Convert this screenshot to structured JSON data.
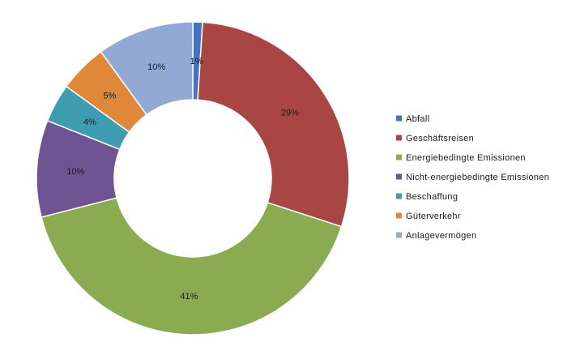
{
  "chart_data": {
    "type": "pie",
    "variant": "donut",
    "title": "",
    "legend_position": "right",
    "grid": false,
    "start_angle_deg": 0,
    "direction": "clockwise",
    "series": [
      {
        "name": "Abfall",
        "value": 1,
        "label": "1%",
        "color": "#4472C4"
      },
      {
        "name": "Geschäftsreisen",
        "value": 29,
        "label": "29%",
        "color": "#A94543"
      },
      {
        "name": "Energiebedingte Emissionen",
        "value": 41,
        "label": "41%",
        "color": "#8AAB4F"
      },
      {
        "name": "Nicht-energiebedingte Emissionen",
        "value": 10,
        "label": "10%",
        "color": "#6F5494"
      },
      {
        "name": "Beschaffung",
        "value": 4,
        "label": "4%",
        "color": "#3F9DB2"
      },
      {
        "name": "Güterverkehr",
        "value": 5,
        "label": "5%",
        "color": "#E0883A"
      },
      {
        "name": "Anlagevermögen",
        "value": 10,
        "label": "10%",
        "color": "#92A9D6"
      }
    ]
  }
}
